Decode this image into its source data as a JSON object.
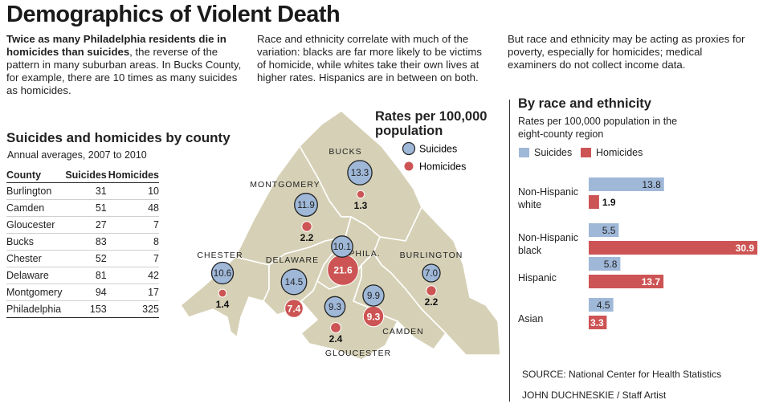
{
  "title": "Demographics of Violent Death",
  "intro": {
    "p1_bold": "Twice as many Philadelphia residents die in homicides than suicides",
    "p1_rest": ", the reverse of the pattern in many suburban areas. In Bucks County, for example, there are 10 times as many suicides as homicides.",
    "p2": "Race and ethnicity correlate with much of the variation: blacks are far more likely to be victims of homicide, while whites take their own lives at higher rates. Hispanics are in between on both.",
    "p3": "But race and ethnicity may be acting as proxies for poverty, especially for homicides; medical examiners do not collect income data."
  },
  "county_table": {
    "title": "Suicides and homicides by county",
    "subtitle": "Annual averages, 2007 to 2010",
    "headers": [
      "County",
      "Suicides",
      "Homicides"
    ],
    "rows": [
      [
        "Burlington",
        "31",
        "10"
      ],
      [
        "Camden",
        "51",
        "48"
      ],
      [
        "Gloucester",
        "27",
        "7"
      ],
      [
        "Bucks",
        "83",
        "8"
      ],
      [
        "Chester",
        "52",
        "7"
      ],
      [
        "Delaware",
        "81",
        "42"
      ],
      [
        "Montgomery",
        "94",
        "17"
      ],
      [
        "Philadelphia",
        "153",
        "325"
      ]
    ]
  },
  "map": {
    "legend_title": "Rates per 100,000 population",
    "legend_suicides": "Suicides",
    "legend_homicides": "Homicides",
    "counties": [
      {
        "name": "BUCKS",
        "suicide": "13.3",
        "homicide": "1.3"
      },
      {
        "name": "MONTGOMERY",
        "suicide": "11.9",
        "homicide": "2.2"
      },
      {
        "name": "CHESTER",
        "suicide": "10.6",
        "homicide": "1.4"
      },
      {
        "name": "DELAWARE",
        "suicide": "14.5",
        "homicide": "7.4"
      },
      {
        "name": "PHILA.",
        "suicide": "10.1",
        "homicide": "21.6"
      },
      {
        "name": "BURLINGTON",
        "suicide": "7.0",
        "homicide": "2.2"
      },
      {
        "name": "CAMDEN",
        "suicide": "9.9",
        "homicide": "9.3"
      },
      {
        "name": "GLOUCESTER",
        "suicide": "9.3",
        "homicide": "2.4"
      }
    ]
  },
  "colors": {
    "suicide": "#9fb8d8",
    "homicide": "#cd5454",
    "map_fill": "#d6d1b6",
    "map_border": "#ffffff"
  },
  "race": {
    "title": "By race and ethnicity",
    "subtitle": "Rates per 100,000 population in the eight-county region"
  },
  "chart_data": {
    "type": "bar",
    "title": "By race and ethnicity",
    "subtitle": "Rates per 100,000 population in the eight-county region",
    "categories": [
      "Non-Hispanic white",
      "Non-Hispanic black",
      "Hispanic",
      "Asian"
    ],
    "series": [
      {
        "name": "Suicides",
        "values": [
          13.8,
          5.5,
          5.8,
          4.5
        ],
        "labels": [
          "13.8",
          "5.5",
          "5.8",
          "4.5"
        ]
      },
      {
        "name": "Homicides",
        "values": [
          1.9,
          30.9,
          13.7,
          3.3
        ],
        "labels": [
          "1.9",
          "30.9",
          "13.7",
          "3.3"
        ]
      }
    ],
    "orientation": "horizontal",
    "legend": "top-left",
    "grid": false
  },
  "source": "SOURCE: National Center for Health Statistics",
  "credit": "JOHN DUCHNESKIE / Staff Artist"
}
